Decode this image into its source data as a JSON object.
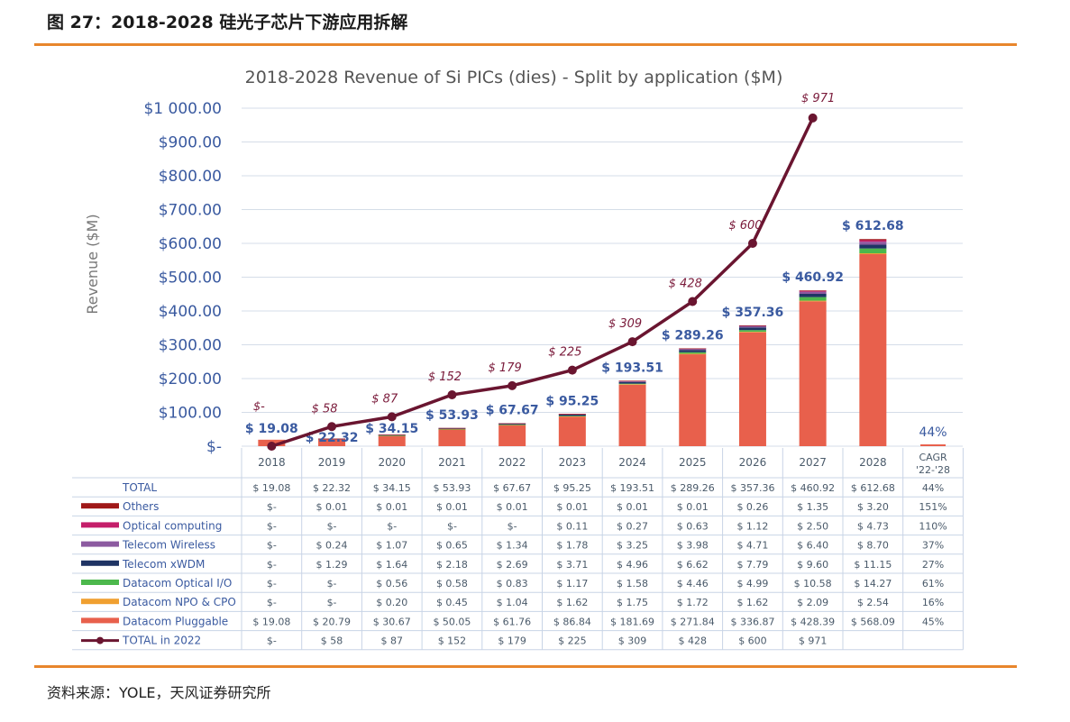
{
  "figure": {
    "title": "图 27：2018-2028 硅光子芯片下游应用拆解",
    "source": "资料来源：YOLE，天风证券研究所"
  },
  "chart_data": {
    "type": "bar",
    "title": "2018-2028 Revenue of Si PICs (dies) - Split by application ($M)",
    "ylabel": "Revenue ($M)",
    "ylim": [
      0,
      1000
    ],
    "y_ticks": [
      "$-",
      "$100.00",
      "$200.00",
      "$300.00",
      "$400.00",
      "$500.00",
      "$600.00",
      "$700.00",
      "$800.00",
      "$900.00",
      "$1 000.00"
    ],
    "categories": [
      "2018",
      "2019",
      "2020",
      "2021",
      "2022",
      "2023",
      "2024",
      "2025",
      "2026",
      "2027",
      "2028"
    ],
    "cagr_header": [
      "CAGR",
      "'22-'28"
    ],
    "totals": [
      19.08,
      22.32,
      34.15,
      53.93,
      67.67,
      95.25,
      193.51,
      289.26,
      357.36,
      460.92,
      612.68
    ],
    "total_labels": [
      "$ 19.08",
      "$ 22.32",
      "$ 34.15",
      "$ 53.93",
      "$ 67.67",
      "$ 95.25",
      "$ 193.51",
      "$ 289.26",
      "$ 357.36",
      "$ 460.92",
      "$ 612.68"
    ],
    "cagr_total_label": "44%",
    "series": [
      {
        "name": "Datacom Pluggable",
        "color": "#e8604c",
        "values": [
          19.08,
          20.79,
          30.67,
          50.05,
          61.76,
          86.84,
          181.69,
          271.84,
          336.87,
          428.39,
          568.09
        ]
      },
      {
        "name": "Datacom NPO & CPO",
        "color": "#f0a030",
        "values": [
          0,
          0,
          0.2,
          0.45,
          1.04,
          1.62,
          1.75,
          1.72,
          1.62,
          2.09,
          2.54
        ]
      },
      {
        "name": "Datacom Optical I/O",
        "color": "#4cb84c",
        "values": [
          0,
          0,
          0.56,
          0.58,
          0.83,
          1.17,
          1.58,
          4.46,
          4.99,
          10.58,
          14.27
        ]
      },
      {
        "name": "Telecom xWDM",
        "color": "#1f3464",
        "values": [
          0,
          1.29,
          1.64,
          2.18,
          2.69,
          3.71,
          4.96,
          6.62,
          7.79,
          9.6,
          11.15
        ]
      },
      {
        "name": "Telecom Wireless",
        "color": "#8c5aa0",
        "values": [
          0,
          0.24,
          1.07,
          0.65,
          1.34,
          1.78,
          3.25,
          3.98,
          4.71,
          6.4,
          8.7
        ]
      },
      {
        "name": "Optical computing",
        "color": "#c41e6a",
        "values": [
          0,
          0,
          0,
          0,
          0,
          0.11,
          0.27,
          0.63,
          1.12,
          2.5,
          4.73
        ]
      },
      {
        "name": "Others",
        "color": "#a01818",
        "values": [
          0,
          0.01,
          0.01,
          0.01,
          0.01,
          0.01,
          0.01,
          0.01,
          0.26,
          1.35,
          3.2
        ]
      }
    ],
    "line": {
      "name": "TOTAL in 2022",
      "color": "#6a1530",
      "values": [
        0,
        58,
        87,
        152,
        179,
        225,
        309,
        428,
        600,
        971
      ],
      "labels": [
        "$-",
        "$ 58",
        "$ 87",
        "$ 152",
        "$ 179",
        "$ 225",
        "$ 309",
        "$ 428",
        "$ 600",
        "$ 971"
      ]
    },
    "table": {
      "header_label": "TOTAL",
      "rows": [
        {
          "label": "TOTAL",
          "color": "",
          "cells": [
            "$ 19.08",
            "$ 22.32",
            "$ 34.15",
            "$ 53.93",
            "$ 67.67",
            "$ 95.25",
            "$ 193.51",
            "$ 289.26",
            "$ 357.36",
            "$ 460.92",
            "$ 612.68",
            "44%"
          ]
        },
        {
          "label": "Others",
          "color": "#a01818",
          "cells": [
            "$-",
            "$ 0.01",
            "$ 0.01",
            "$ 0.01",
            "$ 0.01",
            "$ 0.01",
            "$ 0.01",
            "$ 0.01",
            "$ 0.26",
            "$ 1.35",
            "$ 3.20",
            "151%"
          ]
        },
        {
          "label": "Optical computing",
          "color": "#c41e6a",
          "cells": [
            "$-",
            "$-",
            "$-",
            "$-",
            "$-",
            "$ 0.11",
            "$ 0.27",
            "$ 0.63",
            "$ 1.12",
            "$ 2.50",
            "$ 4.73",
            "110%"
          ]
        },
        {
          "label": "Telecom Wireless",
          "color": "#8c5aa0",
          "cells": [
            "$-",
            "$ 0.24",
            "$ 1.07",
            "$ 0.65",
            "$ 1.34",
            "$ 1.78",
            "$ 3.25",
            "$ 3.98",
            "$ 4.71",
            "$ 6.40",
            "$ 8.70",
            "37%"
          ]
        },
        {
          "label": "Telecom xWDM",
          "color": "#1f3464",
          "cells": [
            "$-",
            "$ 1.29",
            "$ 1.64",
            "$ 2.18",
            "$ 2.69",
            "$ 3.71",
            "$ 4.96",
            "$ 6.62",
            "$ 7.79",
            "$ 9.60",
            "$ 11.15",
            "27%"
          ]
        },
        {
          "label": "Datacom Optical I/O",
          "color": "#4cb84c",
          "cells": [
            "$-",
            "$-",
            "$ 0.56",
            "$ 0.58",
            "$ 0.83",
            "$ 1.17",
            "$ 1.58",
            "$ 4.46",
            "$ 4.99",
            "$ 10.58",
            "$ 14.27",
            "61%"
          ]
        },
        {
          "label": "Datacom NPO & CPO",
          "color": "#f0a030",
          "cells": [
            "$-",
            "$-",
            "$ 0.20",
            "$ 0.45",
            "$ 1.04",
            "$ 1.62",
            "$ 1.75",
            "$ 1.72",
            "$ 1.62",
            "$ 2.09",
            "$ 2.54",
            "16%"
          ]
        },
        {
          "label": "Datacom Pluggable",
          "color": "#e8604c",
          "cells": [
            "$ 19.08",
            "$ 20.79",
            "$ 30.67",
            "$ 50.05",
            "$ 61.76",
            "$ 86.84",
            "$ 181.69",
            "$ 271.84",
            "$ 336.87",
            "$ 428.39",
            "$ 568.09",
            "45%"
          ]
        },
        {
          "label": "TOTAL in 2022",
          "color": "#6a1530",
          "line": true,
          "cells": [
            "$-",
            "$ 58",
            "$ 87",
            "$ 152",
            "$ 179",
            "$ 225",
            "$ 309",
            "$ 428",
            "$ 600",
            "$ 971",
            "",
            ""
          ]
        }
      ]
    }
  }
}
